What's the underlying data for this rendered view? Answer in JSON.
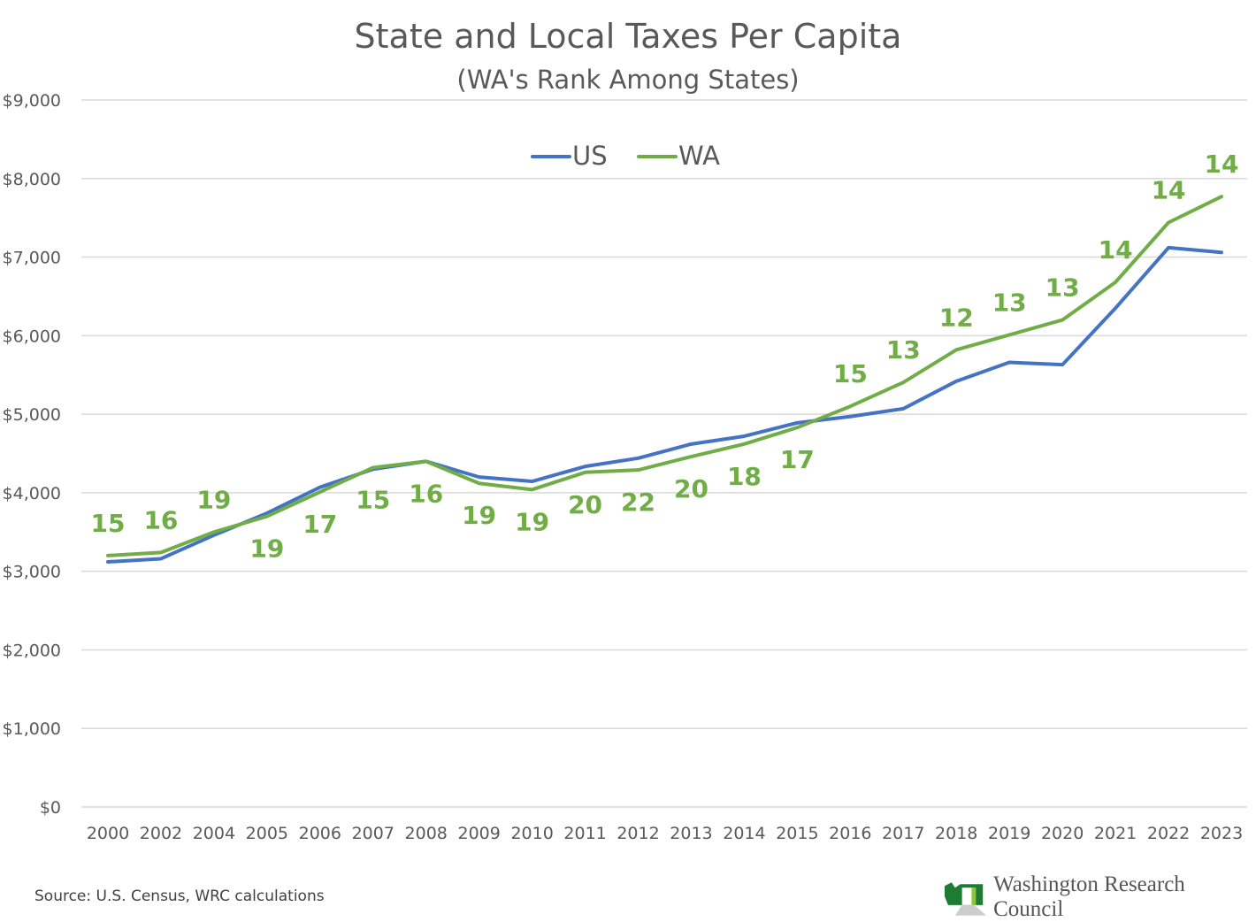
{
  "chart_data": {
    "type": "line",
    "title": "State and Local Taxes Per Capita",
    "subtitle": "(WA's Rank Among States)",
    "xlabel": "",
    "ylabel": "",
    "categories": [
      "2000",
      "2002",
      "2004",
      "2005",
      "2006",
      "2007",
      "2008",
      "2009",
      "2010",
      "2011",
      "2012",
      "2013",
      "2014",
      "2015",
      "2016",
      "2017",
      "2018",
      "2019",
      "2020",
      "2021",
      "2022",
      "2023"
    ],
    "ylim": [
      0,
      9000
    ],
    "yticks": [
      0,
      1000,
      2000,
      3000,
      4000,
      5000,
      6000,
      7000,
      8000,
      9000
    ],
    "ytick_labels": [
      "$0",
      "$1,000",
      "$2,000",
      "$3,000",
      "$4,000",
      "$5,000",
      "$6,000",
      "$7,000",
      "$8,000",
      "$9,000"
    ],
    "grid": true,
    "legend_position": "top-center",
    "series": [
      {
        "name": "US",
        "color": "#4472c4",
        "values": [
          3120,
          3160,
          3460,
          3740,
          4070,
          4300,
          4400,
          4200,
          4145,
          4335,
          4440,
          4620,
          4720,
          4890,
          4970,
          5070,
          5420,
          5660,
          5630,
          6350,
          7120,
          7060
        ]
      },
      {
        "name": "WA",
        "color": "#70ad47",
        "values": [
          3200,
          3240,
          3500,
          3700,
          4010,
          4320,
          4400,
          4120,
          4040,
          4260,
          4290,
          4460,
          4620,
          4830,
          5100,
          5405,
          5820,
          6010,
          6200,
          6680,
          7440,
          7770
        ],
        "data_labels": [
          "15",
          "16",
          "19",
          "19",
          "17",
          "15",
          "16",
          "19",
          "19",
          "20",
          "22",
          "20",
          "18",
          "17",
          "15",
          "13",
          "12",
          "13",
          "13",
          "14",
          "14",
          "14"
        ]
      }
    ]
  },
  "footer": {
    "source": "Source: U.S. Census, WRC calculations",
    "logo_text": "Washington Research Council"
  }
}
